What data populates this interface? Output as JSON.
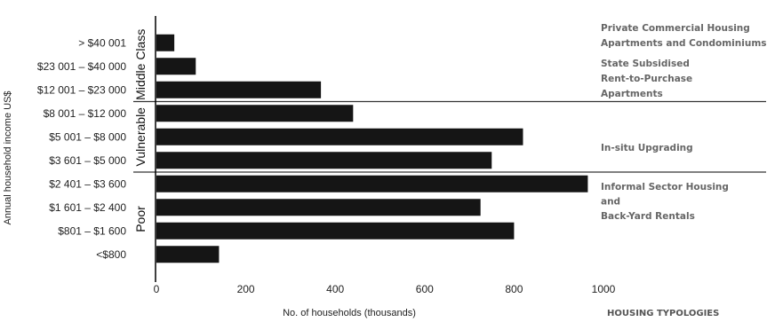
{
  "chart_data": {
    "type": "bar",
    "orientation": "horizontal",
    "categories": [
      "> $40 001",
      "$23 001 – $40 000",
      "$12 001 – $23 000",
      "$8 001 – $12 000",
      "$5 001 – $8 000",
      "$3 601 – $5 000",
      "$2 401 – $3 600",
      "$1 601 – $2 400",
      "$801 – $1 600",
      "<$800"
    ],
    "values": [
      40,
      88,
      368,
      440,
      820,
      750,
      965,
      725,
      800,
      140
    ],
    "xlabel": "No. of households (thousands)",
    "ylabel": "Annual household income US$",
    "xlim": [
      0,
      1000
    ],
    "x_ticks": [
      0,
      200,
      400,
      600,
      800,
      1000
    ],
    "grid": false,
    "bar_color": "#151515",
    "groups": [
      {
        "label": "Middle Class",
        "categories": [
          "> $40 001",
          "$23 001 – $40 000",
          "$12 001 – $23 000"
        ]
      },
      {
        "label": "Vulnerable",
        "categories": [
          "$8 001 – $12 000",
          "$5 001 – $8 000",
          "$3 601 – $5 000"
        ]
      },
      {
        "label": "Poor",
        "categories": [
          "$2 401 – $3 600",
          "$1 601 – $2 400",
          "$801 – $1 600",
          "<$800"
        ]
      }
    ],
    "typologies_header": "HOUSING TYPOLOGIES",
    "typologies": [
      {
        "lines": [
          "Private Commercial Housing",
          "Apartments and Condominiums"
        ]
      },
      {
        "lines": [
          "State Subsidised",
          "Rent-to-Purchase",
          "Apartments"
        ]
      },
      {
        "lines": [
          "In-situ Upgrading"
        ]
      },
      {
        "lines": [
          "Informal Sector Housing",
          "and",
          "Back-Yard Rentals"
        ]
      }
    ]
  }
}
